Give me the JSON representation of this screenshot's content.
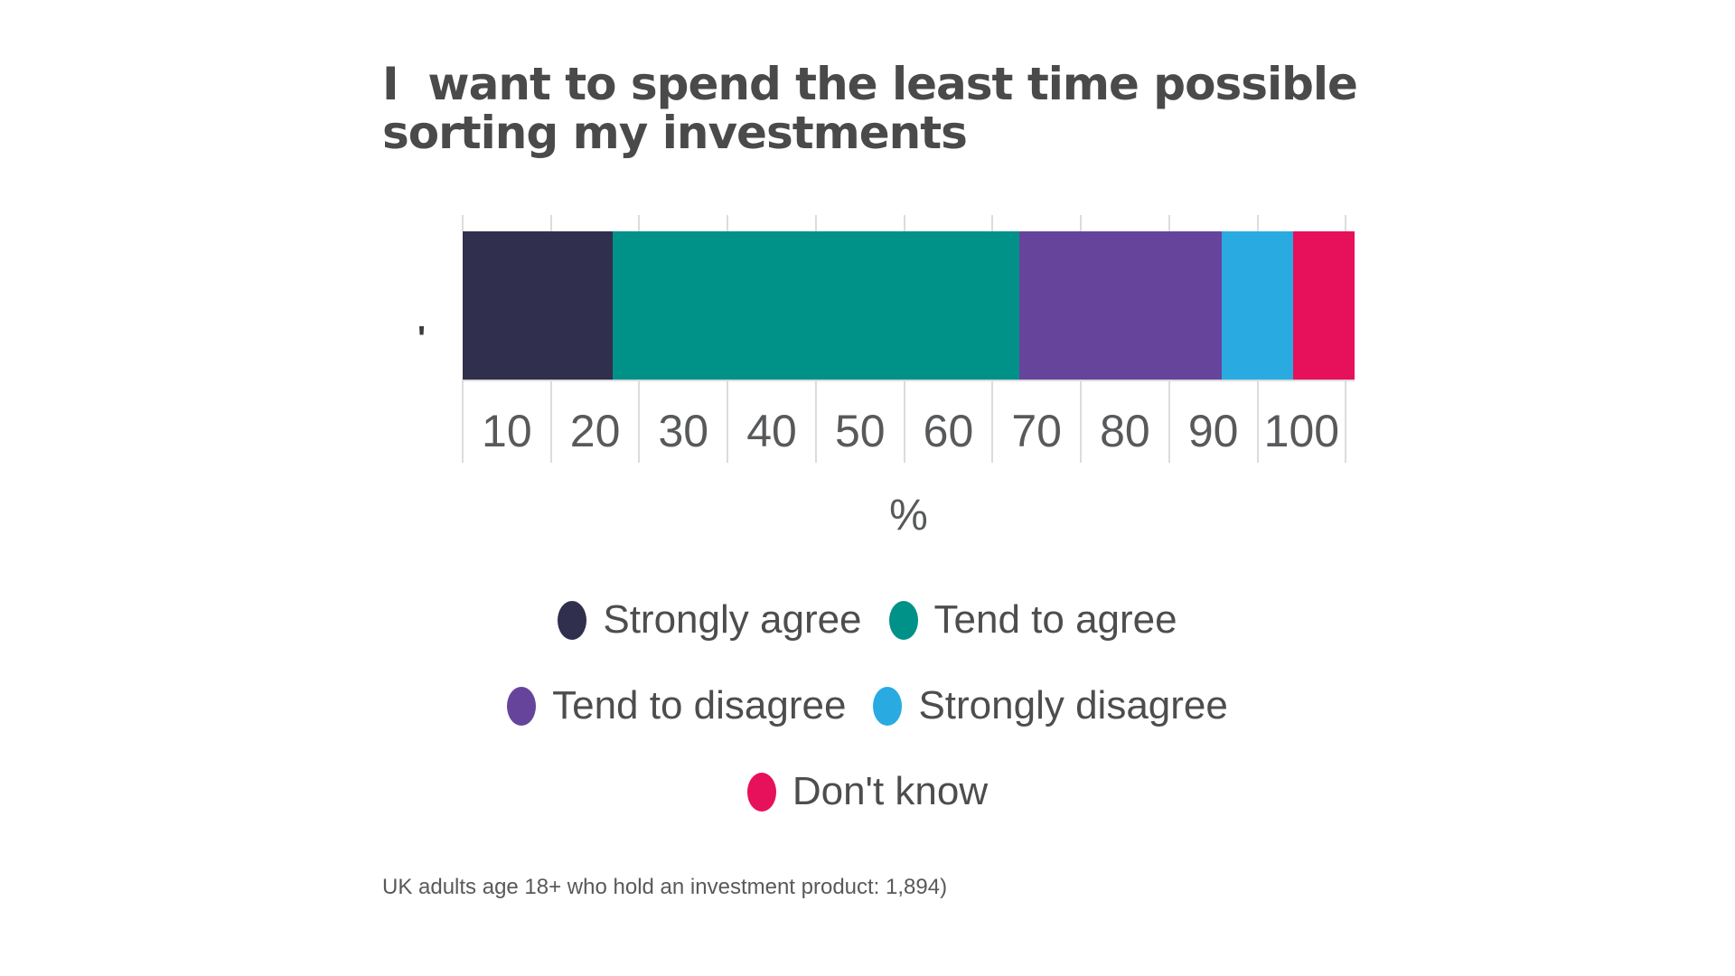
{
  "chart_data": {
    "type": "bar",
    "orientation": "horizontal-stacked",
    "title_lines": [
      "I  want to spend the least time possible",
      "sorting my investments"
    ],
    "categories": [
      "'"
    ],
    "series": [
      {
        "name": "Strongly agree",
        "value": 17,
        "color": "#312F4E"
      },
      {
        "name": "Tend to agree",
        "value": 46,
        "color": "#009189"
      },
      {
        "name": "Tend to disagree",
        "value": 23,
        "color": "#67449C"
      },
      {
        "name": "Strongly disagree",
        "value": 8,
        "color": "#29ABE2"
      },
      {
        "name": "Don't know",
        "value": 7,
        "color": "#E7105A"
      }
    ],
    "values_total": 101,
    "xlabel": "%",
    "axis": {
      "gridline_values": [
        0,
        10,
        20,
        30,
        40,
        50,
        60,
        70,
        80,
        90,
        100
      ],
      "tick_labels": [
        "10",
        "20",
        "30",
        "40",
        "50",
        "60",
        "70",
        "80",
        "90",
        "100"
      ],
      "xlim": [
        0,
        101
      ],
      "grid_on": true
    },
    "legend_rows": [
      [
        "Strongly agree",
        "Tend to agree"
      ],
      [
        "Tend to disagree",
        "Strongly disagree"
      ],
      [
        "Don't know"
      ]
    ],
    "legend_position": "bottom-center"
  },
  "footnote": "UK adults age 18+ who hold an investment product: 1,894)",
  "colors": {
    "title_text": "#4A4A4A",
    "tick_label_text": "#58595B",
    "legend_text": "#4D4D4D",
    "gridline": "#DCDCDC",
    "footnote_text": "#595959",
    "background": "#FFFFFF"
  }
}
